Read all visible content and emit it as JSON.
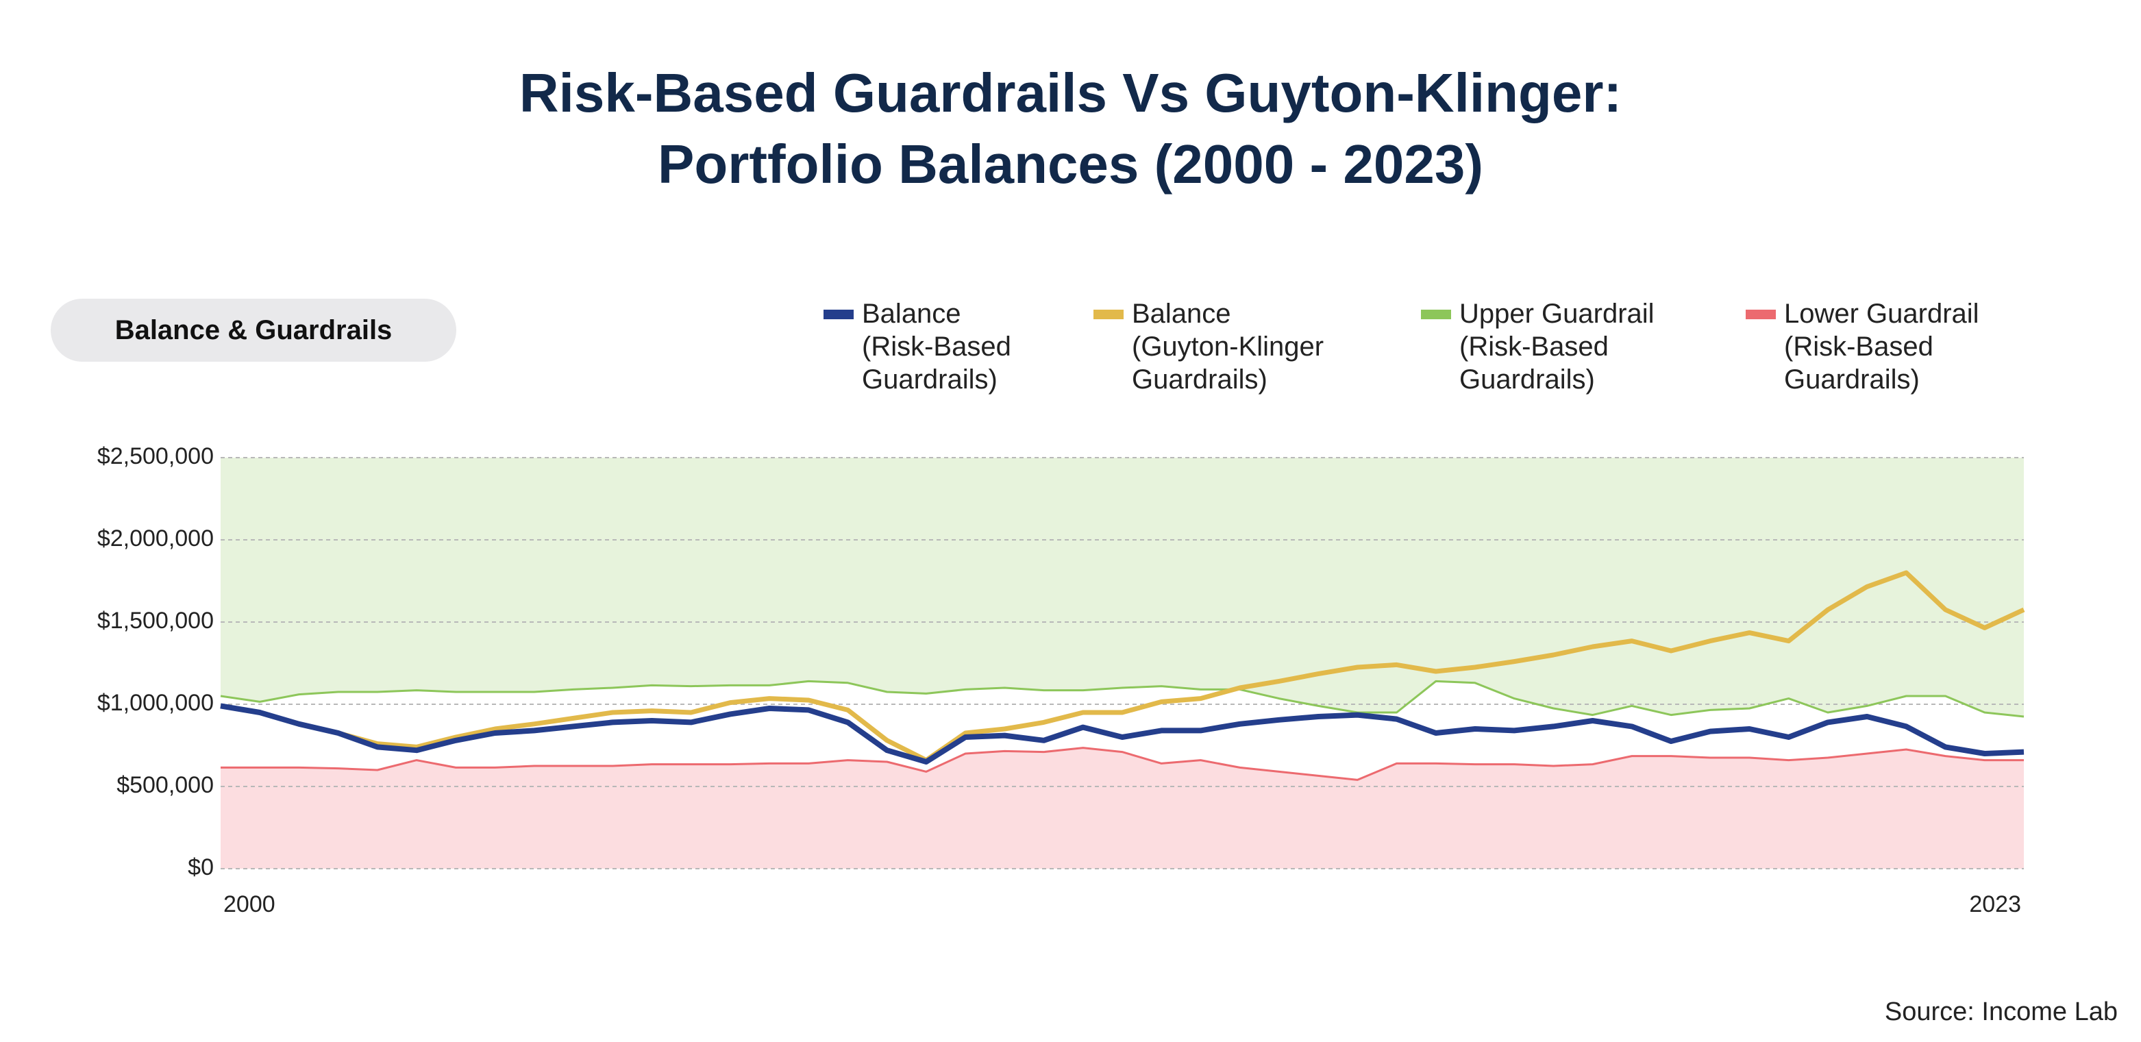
{
  "chart_data": {
    "type": "line",
    "title": "Risk-Based Guardrails Vs Guyton-Klinger:\nPortfolio Balances (2000 - 2023)",
    "subtitle": "Balance & Guardrails",
    "source": "Source: Income Lab",
    "x": [
      2000,
      2000.5,
      2001,
      2001.5,
      2002,
      2002.5,
      2003,
      2003.5,
      2004,
      2004.5,
      2005,
      2005.5,
      2006,
      2006.5,
      2007,
      2007.5,
      2008,
      2008.5,
      2009,
      2009.5,
      2010,
      2010.5,
      2011,
      2011.5,
      2012,
      2012.5,
      2013,
      2013.5,
      2014,
      2014.5,
      2015,
      2015.5,
      2016,
      2016.5,
      2017,
      2017.5,
      2018,
      2018.5,
      2019,
      2019.5,
      2020,
      2020.5,
      2021,
      2021.5,
      2022,
      2022.5,
      2023
    ],
    "xlim": [
      2000,
      2023
    ],
    "xticks": [
      2000,
      2023
    ],
    "ylim": [
      0,
      2500000
    ],
    "yticks": [
      {
        "value": 0,
        "label": "$0"
      },
      {
        "value": 500000,
        "label": "$500,000"
      },
      {
        "value": 1000000,
        "label": "$1,000,000"
      },
      {
        "value": 1500000,
        "label": "$1,500,000"
      },
      {
        "value": 2000000,
        "label": "$2,000,000"
      },
      {
        "value": 2500000,
        "label": "$2,500,000"
      }
    ],
    "grid": true,
    "legend": "top",
    "series": [
      {
        "name": "Balance\n(Risk-Based\nGuardrails)",
        "color": "#243e8c",
        "values": [
          990000,
          950000,
          880000,
          825000,
          740000,
          720000,
          780000,
          825000,
          840000,
          865000,
          890000,
          900000,
          890000,
          940000,
          975000,
          965000,
          890000,
          720000,
          650000,
          800000,
          810000,
          780000,
          860000,
          800000,
          840000,
          840000,
          880000,
          905000,
          925000,
          935000,
          910000,
          825000,
          850000,
          840000,
          865000,
          900000,
          865000,
          775000,
          835000,
          850000,
          800000,
          890000,
          925000,
          865000,
          740000,
          700000,
          710000
        ]
      },
      {
        "name": "Balance\n(Guyton-Klinger\nGuardrails)",
        "color": "#e2b94a",
        "values": [
          990000,
          950000,
          880000,
          825000,
          760000,
          740000,
          800000,
          850000,
          880000,
          915000,
          950000,
          960000,
          950000,
          1010000,
          1035000,
          1025000,
          965000,
          780000,
          660000,
          825000,
          850000,
          890000,
          950000,
          950000,
          1015000,
          1035000,
          1100000,
          1140000,
          1185000,
          1225000,
          1240000,
          1200000,
          1225000,
          1260000,
          1300000,
          1350000,
          1385000,
          1325000,
          1385000,
          1435000,
          1385000,
          1575000,
          1715000,
          1800000,
          1575000,
          1465000,
          1575000
        ]
      },
      {
        "name": "Upper Guardrail\n(Risk-Based\nGuardrails)",
        "color": "#8dc65a",
        "fill": "#e7f3dc",
        "values": [
          1050000,
          1015000,
          1060000,
          1075000,
          1075000,
          1085000,
          1075000,
          1075000,
          1075000,
          1090000,
          1100000,
          1115000,
          1110000,
          1115000,
          1115000,
          1140000,
          1130000,
          1075000,
          1065000,
          1090000,
          1100000,
          1085000,
          1085000,
          1100000,
          1110000,
          1090000,
          1090000,
          1035000,
          990000,
          950000,
          950000,
          1140000,
          1130000,
          1035000,
          975000,
          935000,
          990000,
          935000,
          965000,
          975000,
          1035000,
          950000,
          990000,
          1050000,
          1050000,
          950000,
          925000
        ]
      },
      {
        "name": "Lower Guardrail\n(Risk-Based\nGuardrails)",
        "color": "#ec6a6f",
        "fill": "#fcdde0",
        "values": [
          615000,
          615000,
          615000,
          610000,
          600000,
          660000,
          615000,
          615000,
          625000,
          625000,
          625000,
          635000,
          635000,
          635000,
          640000,
          640000,
          660000,
          650000,
          590000,
          700000,
          715000,
          710000,
          735000,
          710000,
          640000,
          660000,
          615000,
          590000,
          565000,
          540000,
          640000,
          640000,
          635000,
          635000,
          625000,
          635000,
          685000,
          685000,
          675000,
          675000,
          660000,
          675000,
          700000,
          725000,
          685000,
          660000,
          660000
        ]
      }
    ]
  }
}
